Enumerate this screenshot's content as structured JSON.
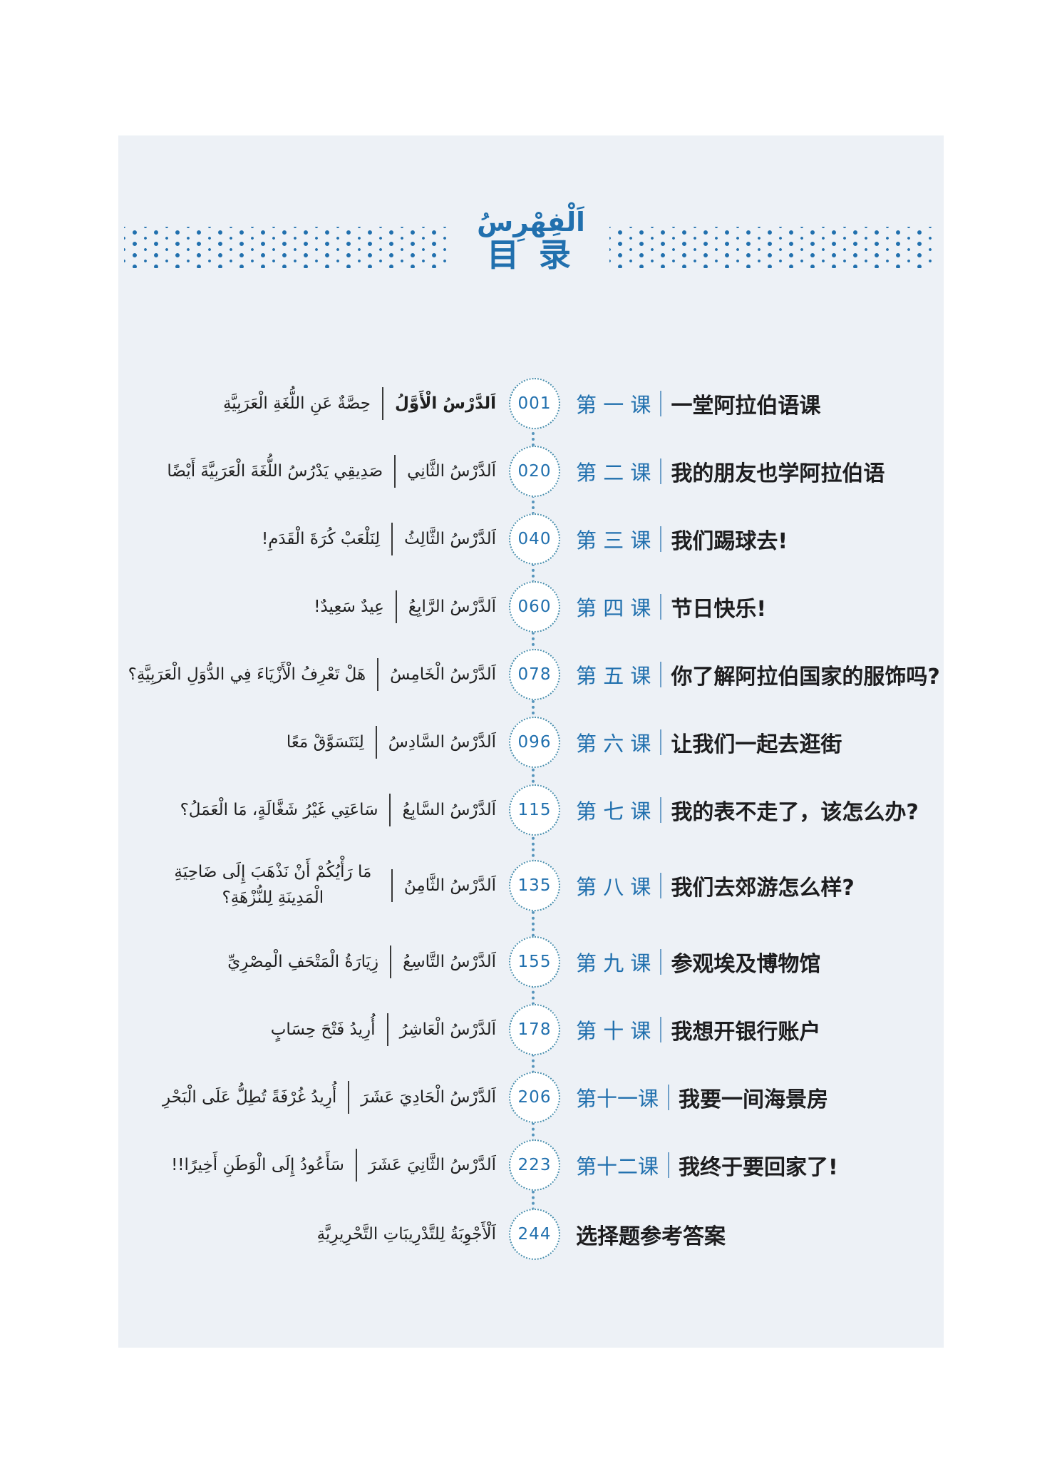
{
  "colors": {
    "accent": "#2170ae",
    "circle_border": "#4a8fae",
    "panel_bg": "#edf1f6",
    "ink": "#232323",
    "zh_bar": "#6fa0c9"
  },
  "header": {
    "title_ar": "اَلْفِهْرِسُ",
    "title_zh": "目 录"
  },
  "toc": {
    "entries": [
      {
        "page": "001",
        "lesson_zh": "第 一 课",
        "title_zh": "一堂阿拉伯语课",
        "lesson_ar": "اَلدَّرْسُ الْأَوَّلُ",
        "title_ar": "حِصَّةٌ عَنِ اللُّغَةِ الْعَرَبِيَّةِ",
        "ar_bold": true
      },
      {
        "page": "020",
        "lesson_zh": "第 二 课",
        "title_zh": "我的朋友也学阿拉伯语",
        "lesson_ar": "اَلدَّرْسُ الثَّانِي",
        "title_ar": "صَدِيقِي يَدْرُسُ اللُّغَةَ الْعَرَبِيَّةَ أَيْضًا"
      },
      {
        "page": "040",
        "lesson_zh": "第 三 课",
        "title_zh": "我们踢球去!",
        "lesson_ar": "اَلدَّرْسُ الثَّالِثُ",
        "title_ar": "لِنَلْعَبْ كُرَةَ الْقَدَمِ!"
      },
      {
        "page": "060",
        "lesson_zh": "第 四 课",
        "title_zh": "节日快乐!",
        "lesson_ar": "اَلدَّرْسُ الرَّابِعُ",
        "title_ar": "عِيدٌ سَعِيدٌ!"
      },
      {
        "page": "078",
        "lesson_zh": "第 五 课",
        "title_zh": "你了解阿拉伯国家的服饰吗?",
        "lesson_ar": "اَلدَّرْسُ الْخَامِسُ",
        "title_ar": "هَلْ تَعْرِفُ الْأَزْيَاءَ فِي الدُّوَلِ الْعَرَبِيَّةِ؟"
      },
      {
        "page": "096",
        "lesson_zh": "第 六 课",
        "title_zh": "让我们一起去逛街",
        "lesson_ar": "اَلدَّرْسُ السَّادِسُ",
        "title_ar": "لِنَتَسَوَّقْ مَعًا"
      },
      {
        "page": "115",
        "lesson_zh": "第 七 课",
        "title_zh": "我的表不走了，该怎么办?",
        "lesson_ar": "اَلدَّرْسُ السَّابِعُ",
        "title_ar": "سَاعَتِي غَيْرُ شَغَّالَةٍ، مَا الْعَمَلُ؟"
      },
      {
        "page": "135",
        "lesson_zh": "第 八 课",
        "title_zh": "我们去郊游怎么样?",
        "lesson_ar": "اَلدَّرْسُ الثَّامِنُ",
        "title_ar": "مَا رَأْيُكُمْ أَنْ نَذْهَبَ إِلَى ضَاحِيَةِ الْمَدِينَةِ لِلنُّزْهَةِ؟"
      },
      {
        "page": "155",
        "lesson_zh": "第 九 课",
        "title_zh": "参观埃及博物馆",
        "lesson_ar": "اَلدَّرْسُ التَّاسِعُ",
        "title_ar": "زِيَارَةُ الْمَتْحَفِ الْمِصْرِيِّ"
      },
      {
        "page": "178",
        "lesson_zh": "第 十 课",
        "title_zh": "我想开银行账户",
        "lesson_ar": "اَلدَّرْسُ الْعَاشِرُ",
        "title_ar": "أُرِيدُ فَتْحَ حِسَابٍ"
      },
      {
        "page": "206",
        "lesson_zh": "第十一课",
        "title_zh": "我要一间海景房",
        "lesson_ar": "اَلدَّرْسُ الْحَادِيَ عَشَرَ",
        "title_ar": "أُرِيدُ غُرْفَةً تُطِلُّ عَلَى الْبَحْرِ"
      },
      {
        "page": "223",
        "lesson_zh": "第十二课",
        "title_zh": "我终于要回家了!",
        "lesson_ar": "اَلدَّرْسُ الثَّانِيَ عَشَرَ",
        "title_ar": "سَأَعُودُ إِلَى الْوَطَنِ أَخِيرًا!!"
      },
      {
        "page": "244",
        "lesson_zh": "",
        "title_zh": "选择题参考答案",
        "lesson_ar": "",
        "title_ar": "اَلْأَجْوِبَةُ لِلتَّدْرِيبَاتِ التَّحْرِيرِيَّةِ"
      }
    ]
  }
}
